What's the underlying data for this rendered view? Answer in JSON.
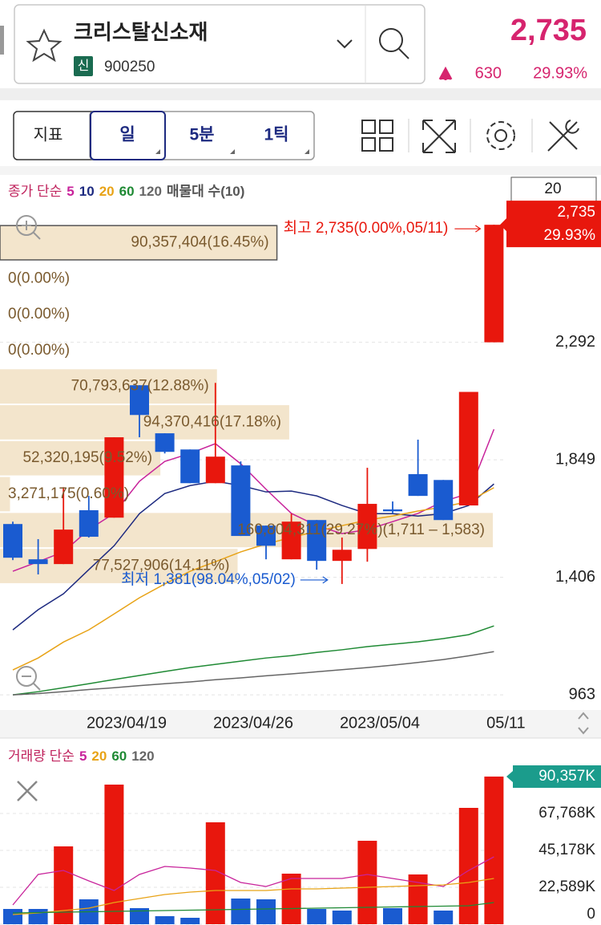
{
  "header": {
    "name": "크리스탈신소재",
    "badge": "신",
    "code": "900250",
    "price": "2,735",
    "change": "630",
    "change_pct": "29.93%"
  },
  "toolbar": {
    "buttons": [
      "지표",
      "일",
      "5분",
      "1틱"
    ]
  },
  "price_chart": {
    "type": "candlestick",
    "legend_prefix": "종가 단순",
    "legend_suffix": "매물대 수(10)",
    "period_box": "20",
    "price_tag": {
      "price": "2,735",
      "change_pct": "29.93%"
    },
    "high_note": "최고 2,735(0.00%,05/11)",
    "low_note": "최저 1,381(98.04%,05/02)",
    "up_color": "#e8170d",
    "down_color": "#1a5bd0",
    "categories": [
      null,
      null,
      null,
      null,
      null,
      "2023/04/19",
      null,
      null,
      null,
      null,
      "2023/04/26",
      null,
      null,
      null,
      null,
      "2023/05/04",
      null,
      null,
      null,
      "05/11"
    ],
    "open": [
      1607,
      1474,
      1456,
      1659,
      1631,
      2130,
      1949,
      1888,
      1761,
      1828,
      1601,
      1474,
      1622,
      1468,
      1513,
      1662,
      1795,
      1773,
      1677,
      2292
    ],
    "high": [
      1616,
      1550,
      1746,
      1713,
      1934,
      2130,
      1949,
      1888,
      2139,
      1843,
      1601,
      1646,
      1622,
      1556,
      1819,
      1692,
      1925,
      1773,
      2105,
      2735
    ],
    "low": [
      1471,
      1417,
      1456,
      1556,
      1631,
      1934,
      1873,
      1761,
      1761,
      1562,
      1474,
      1474,
      1435,
      1381,
      1465,
      1646,
      1713,
      1622,
      1677,
      2292
    ],
    "close": [
      1480,
      1456,
      1586,
      1559,
      1934,
      2018,
      1879,
      1761,
      1861,
      1562,
      1525,
      1616,
      1468,
      1510,
      1683,
      1655,
      1713,
      1622,
      2105,
      2735
    ],
    "series": [
      {
        "name": "5",
        "color": "#c8239b",
        "values": [
          1429,
          1465,
          1502,
          1586,
          1647,
          1768,
          1843,
          1873,
          1910,
          1834,
          1738,
          1647,
          1601,
          1571,
          1586,
          1616,
          1647,
          1692,
          1722,
          1964
        ]
      },
      {
        "name": "10",
        "color": "#1d2a80",
        "values": [
          1208,
          1284,
          1344,
          1435,
          1525,
          1646,
          1722,
          1752,
          1768,
          1752,
          1728,
          1731,
          1713,
          1677,
          1646,
          1646,
          1637,
          1646,
          1677,
          1758
        ]
      },
      {
        "name": "20",
        "color": "#e8a317",
        "values": [
          1057,
          1102,
          1162,
          1208,
          1268,
          1329,
          1381,
          1429,
          1465,
          1502,
          1532,
          1556,
          1580,
          1601,
          1622,
          1637,
          1656,
          1671,
          1692,
          1744
        ]
      },
      {
        "name": "60",
        "color": "#1f8a34",
        "values": [
          963,
          975,
          990,
          1005,
          1021,
          1036,
          1051,
          1066,
          1078,
          1090,
          1102,
          1111,
          1123,
          1133,
          1145,
          1154,
          1163,
          1175,
          1190,
          1223
        ]
      },
      {
        "name": "120",
        "color": "#666666",
        "values": [
          963,
          968,
          975,
          983,
          990,
          998,
          1005,
          1012,
          1020,
          1027,
          1035,
          1042,
          1050,
          1058,
          1066,
          1075,
          1085,
          1096,
          1110,
          1126
        ]
      }
    ],
    "ylim": [
      906,
      2923
    ],
    "yticks": [
      963,
      {
        "value": 1406,
        "label": "1,406"
      },
      {
        "value": 1849,
        "label": "1,849"
      },
      {
        "value": 2292,
        "label": "2,292"
      }
    ],
    "volume_profile": {
      "values": [
        90357404,
        0,
        0,
        0,
        70793637,
        94370416,
        52320195,
        3271175,
        160804311,
        77527906
      ],
      "value_labels": [
        "90,357,404(16.45%)",
        "0(0.00%)",
        "0(0.00%)",
        "0(0.00%)",
        "70,793,637(12.88%)",
        "94,370,416(17.18%)",
        "52,320,195(9.52%)",
        "3,271,175(0.60%)",
        "160,804,311(29.27%)(1,711 – 1,583)",
        "77,527,906(14.11%)"
      ],
      "color": "#f3e5cc"
    }
  },
  "volume_chart": {
    "type": "bar",
    "legend_prefix": "거래량 단순",
    "current_label": "90,357K",
    "values": [
      9329,
      9329,
      47627,
      15221,
      85434,
      9820,
      4910,
      3928,
      62357,
      15712,
      15221,
      30933,
      9329,
      8347,
      51064,
      9820,
      30442,
      8347,
      71195,
      90357
    ],
    "colors": [
      "#1a5bd0",
      "#1a5bd0",
      "#e8170d",
      "#1a5bd0",
      "#e8170d",
      "#1a5bd0",
      "#1a5bd0",
      "#1a5bd0",
      "#e8170d",
      "#1a5bd0",
      "#1a5bd0",
      "#e8170d",
      "#1a5bd0",
      "#1a5bd0",
      "#e8170d",
      "#1a5bd0",
      "#e8170d",
      "#1a5bd0",
      "#e8170d",
      "#e8170d"
    ],
    "series": [
      {
        "name": "5",
        "color": "#c8239b",
        "values": [
          11784,
          30442,
          32897,
          26514,
          20622,
          30442,
          35352,
          34370,
          32897,
          25532,
          23077,
          27987,
          27987,
          27987,
          30442,
          27987,
          25532,
          23077,
          32897,
          41244
        ]
      },
      {
        "name": "20",
        "color": "#e8a317",
        "values": [
          5892,
          6874,
          8347,
          9820,
          13257,
          15712,
          18167,
          19640,
          20622,
          20622,
          20622,
          21604,
          21604,
          22095,
          22586,
          23077,
          23568,
          24059,
          25532,
          27987
        ]
      },
      {
        "name": "60",
        "color": "#1f8a34",
        "values": [
          6874,
          7120,
          7365,
          7611,
          7856,
          8102,
          8347,
          8593,
          8838,
          9084,
          9329,
          9575,
          9820,
          10066,
          10311,
          10557,
          10802,
          11048,
          11293,
          13257
        ]
      },
      {
        "name": "120",
        "color": "#666666"
      }
    ],
    "ylim": [
      0,
      111457
    ],
    "yticks": [
      0,
      {
        "value": 22589,
        "label": "22,589K"
      },
      {
        "value": 45178,
        "label": "45,178K"
      },
      {
        "value": 67768,
        "label": "67,768K"
      }
    ]
  }
}
